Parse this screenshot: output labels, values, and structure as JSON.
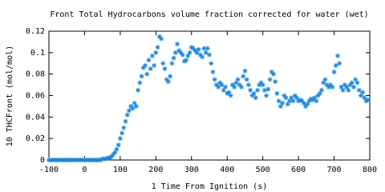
{
  "chart_data": {
    "type": "scatter",
    "title": "Front Total Hydrocarbons volume fraction corrected for water (wet)",
    "x_label": "1 Time From Ignition (s)",
    "y_label": "10 THCFront (mol/mol)",
    "xlim": [
      -100,
      800
    ],
    "xticks": [
      -100,
      0,
      100,
      200,
      300,
      400,
      500,
      600,
      700,
      800
    ],
    "ylim": [
      0,
      0.12
    ],
    "yticks": [
      0,
      0.02,
      0.04,
      0.06,
      0.08,
      0.1,
      0.12
    ],
    "series": [
      {
        "color": "#1a86dc",
        "x": [
          -100,
          -95,
          -90,
          -85,
          -80,
          -75,
          -70,
          -65,
          -60,
          -55,
          -50,
          -45,
          -40,
          -35,
          -30,
          -25,
          -20,
          -15,
          -10,
          -5,
          0,
          5,
          10,
          15,
          20,
          25,
          30,
          35,
          40,
          45,
          50,
          55,
          60,
          65,
          70,
          75,
          80,
          85,
          90,
          95,
          100,
          105,
          110,
          115,
          120,
          125,
          130,
          135,
          140,
          145,
          150,
          155,
          160,
          165,
          170,
          175,
          180,
          185,
          190,
          195,
          200,
          205,
          210,
          215,
          220,
          225,
          230,
          235,
          240,
          245,
          250,
          255,
          260,
          265,
          270,
          275,
          280,
          285,
          290,
          295,
          300,
          305,
          310,
          315,
          320,
          325,
          330,
          335,
          340,
          345,
          350,
          355,
          360,
          365,
          370,
          375,
          380,
          385,
          390,
          395,
          400,
          405,
          410,
          415,
          420,
          425,
          430,
          435,
          440,
          445,
          450,
          455,
          460,
          465,
          470,
          475,
          480,
          485,
          490,
          495,
          500,
          505,
          510,
          515,
          520,
          525,
          530,
          535,
          540,
          545,
          550,
          555,
          560,
          565,
          570,
          575,
          580,
          585,
          590,
          595,
          600,
          605,
          610,
          615,
          620,
          625,
          630,
          635,
          640,
          645,
          650,
          655,
          660,
          665,
          670,
          675,
          680,
          685,
          690,
          695,
          700,
          705,
          710,
          715,
          720,
          725,
          730,
          735,
          740,
          745,
          750,
          755,
          760,
          765,
          770,
          775,
          780,
          785,
          790,
          795
        ],
        "values": [
          0,
          0,
          0,
          0,
          0,
          0,
          0,
          0,
          0,
          0,
          0,
          0,
          0,
          0,
          0,
          0,
          0,
          0,
          0,
          0,
          0,
          0,
          0,
          0,
          0,
          0,
          0,
          0,
          0,
          0,
          0.001,
          0.001,
          0.001,
          0.002,
          0.002,
          0.003,
          0.005,
          0.007,
          0.01,
          0.014,
          0.02,
          0.025,
          0.03,
          0.036,
          0.042,
          0.046,
          0.05,
          0.048,
          0.053,
          0.05,
          0.065,
          0.072,
          0.078,
          0.086,
          0.088,
          0.08,
          0.093,
          0.085,
          0.097,
          0.088,
          0.1,
          0.105,
          0.115,
          0.113,
          0.09,
          0.085,
          0.075,
          0.073,
          0.078,
          0.09,
          0.095,
          0.1,
          0.108,
          0.102,
          0.1,
          0.098,
          0.092,
          0.093,
          0.097,
          0.1,
          0.105,
          0.104,
          0.102,
          0.1,
          0.103,
          0.098,
          0.096,
          0.104,
          0.1,
          0.104,
          0.098,
          0.09,
          0.082,
          0.075,
          0.07,
          0.068,
          0.072,
          0.07,
          0.065,
          0.068,
          0.062,
          0.063,
          0.06,
          0.07,
          0.068,
          0.072,
          0.075,
          0.07,
          0.068,
          0.078,
          0.083,
          0.075,
          0.07,
          0.065,
          0.06,
          0.062,
          0.058,
          0.065,
          0.07,
          0.072,
          0.07,
          0.065,
          0.06,
          0.066,
          0.075,
          0.082,
          0.08,
          0.073,
          0.062,
          0.055,
          0.05,
          0.053,
          0.06,
          0.058,
          0.052,
          0.055,
          0.058,
          0.055,
          0.06,
          0.058,
          0.055,
          0.056,
          0.055,
          0.053,
          0.05,
          0.052,
          0.055,
          0.057,
          0.056,
          0.058,
          0.055,
          0.06,
          0.062,
          0.065,
          0.072,
          0.075,
          0.07,
          0.068,
          0.07,
          0.068,
          0.082,
          0.088,
          0.097,
          0.09,
          0.068,
          0.065,
          0.07,
          0.068,
          0.065,
          0.07,
          0.072,
          0.068,
          0.075,
          0.072,
          0.065,
          0.06,
          0.063,
          0.058,
          0.055,
          0.056
        ]
      }
    ]
  }
}
